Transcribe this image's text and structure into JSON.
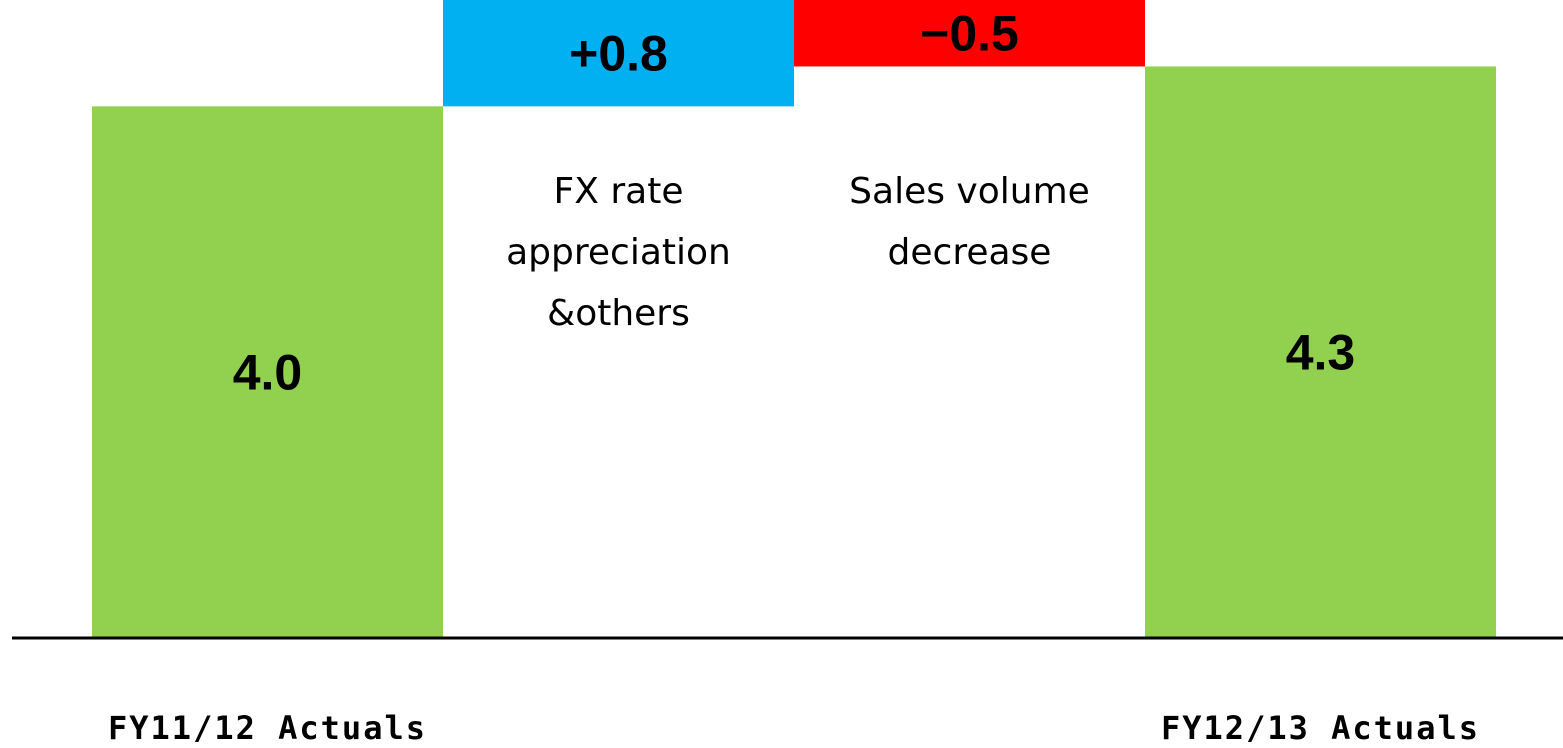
{
  "chart_data": {
    "type": "waterfall",
    "categories": [
      "FY11/12 Actuals",
      null,
      null,
      "FY12/13 Actuals"
    ],
    "values": [
      4.0,
      0.8,
      -0.5,
      4.3
    ],
    "value_labels": [
      "4.0",
      "+0.8",
      "−0.5",
      "4.3"
    ],
    "totals": [
      true,
      false,
      false,
      true
    ],
    "colors": [
      "#92d050",
      "#00b0f0",
      "#ff0000",
      "#92d050"
    ],
    "annotations": [
      {
        "lines": [
          "FX rate",
          "appreciation",
          "&others"
        ]
      },
      {
        "lines": [
          "Sales volume",
          "decrease"
        ]
      }
    ],
    "ylim": [
      0,
      4.8
    ]
  }
}
